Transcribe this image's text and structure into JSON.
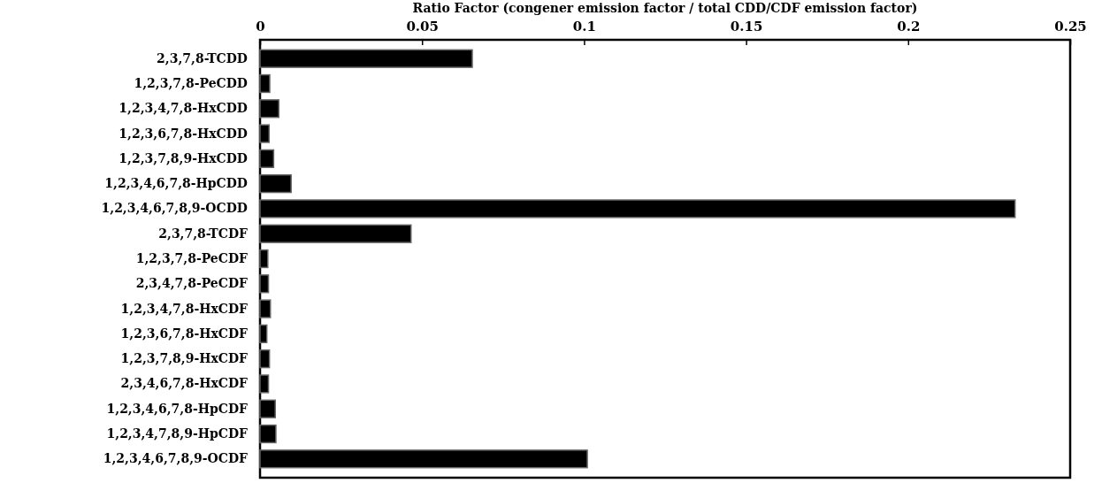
{
  "chart_data": {
    "type": "bar",
    "orientation": "horizontal",
    "xlabel": "Ratio Factor (congener emission factor / total CDD/CDF emission factor)",
    "categories": [
      "2,3,7,8-TCDD",
      "1,2,3,7,8-PeCDD",
      "1,2,3,4,7,8-HxCDD",
      "1,2,3,6,7,8-HxCDD",
      "1,2,3,7,8,9-HxCDD",
      "1,2,3,4,6,7,8-HpCDD",
      "1,2,3,4,6,7,8,9-OCDD",
      "2,3,7,8-TCDF",
      "1,2,3,7,8-PeCDF",
      "2,3,4,7,8-PeCDF",
      "1,2,3,4,7,8-HxCDF",
      "1,2,3,6,7,8-HxCDF",
      "1,2,3,7,8,9-HxCDF",
      "2,3,4,6,7,8-HxCDF",
      "1,2,3,4,6,7,8-HpCDF",
      "1,2,3,4,7,8,9-HpCDF",
      "1,2,3,4,6,7,8,9-OCDF"
    ],
    "values": [
      0.0655,
      0.003,
      0.0058,
      0.0028,
      0.0042,
      0.0096,
      0.233,
      0.0466,
      0.0024,
      0.0026,
      0.0032,
      0.0021,
      0.0029,
      0.0026,
      0.0047,
      0.0049,
      0.101
    ],
    "color": "#000000",
    "xlim": [
      0,
      0.25
    ],
    "xticks": [
      0,
      0.05,
      0.1,
      0.15,
      0.2,
      0.25
    ]
  }
}
